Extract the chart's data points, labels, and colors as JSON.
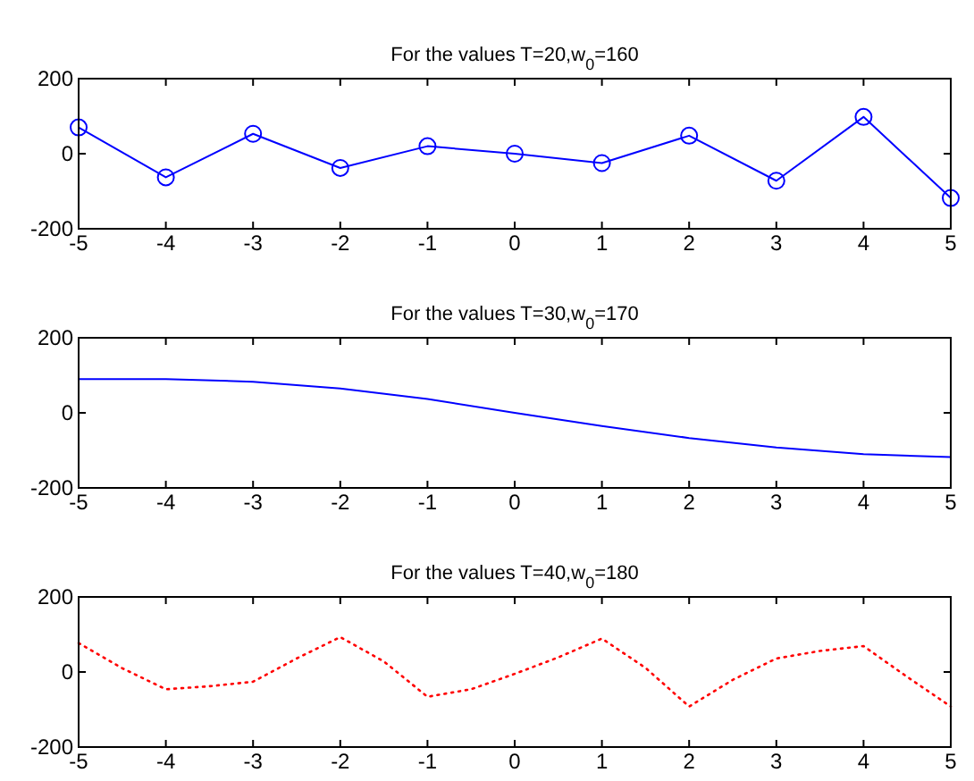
{
  "chart_data": [
    {
      "type": "line",
      "title": "For the values T=20,w$_{0}$=160",
      "x": [
        -5,
        -4,
        -3,
        -2,
        -1,
        0,
        1,
        2,
        3,
        4,
        5
      ],
      "marker": "circle",
      "line_style": "solid",
      "xlim": [
        -5,
        5
      ],
      "xticks": [
        -5,
        -4,
        -3,
        -2,
        -1,
        0,
        1,
        2,
        3,
        4,
        5
      ],
      "ylim": [
        -200,
        200
      ],
      "yticks": [
        -200,
        0,
        200
      ],
      "series": [
        {
          "color": "#0000ff",
          "values": [
            70,
            -63,
            53,
            -38,
            20,
            0,
            -25,
            48,
            -72,
            98,
            -118
          ]
        }
      ]
    },
    {
      "type": "line",
      "title": "For the values T=30,w$_{0}$=170",
      "x": [
        -5,
        -4,
        -3,
        -2,
        -1,
        0,
        1,
        2,
        3,
        4,
        5
      ],
      "marker": "none",
      "line_style": "solid",
      "xlim": [
        -5,
        5
      ],
      "xticks": [
        -5,
        -4,
        -3,
        -2,
        -1,
        0,
        1,
        2,
        3,
        4,
        5
      ],
      "ylim": [
        -200,
        200
      ],
      "yticks": [
        -200,
        0,
        200
      ],
      "series": [
        {
          "color": "#0000ff",
          "values": [
            90,
            90,
            83,
            65,
            37,
            0,
            -35,
            -67,
            -92,
            -110,
            -118
          ]
        }
      ]
    },
    {
      "type": "line",
      "title": "For the values T=40,w$_{0}$=180",
      "x": [
        -5,
        -4.5,
        -4,
        -3.5,
        -3,
        -2.5,
        -2,
        -1.5,
        -1,
        -0.5,
        0,
        0.5,
        1,
        1.5,
        2,
        2.5,
        3,
        3.5,
        4,
        4.5,
        5
      ],
      "marker": "none",
      "line_style": "dotted",
      "xlim": [
        -5,
        5
      ],
      "xticks": [
        -5,
        -4,
        -3,
        -2,
        -1,
        0,
        1,
        2,
        3,
        4,
        5
      ],
      "ylim": [
        -200,
        200
      ],
      "yticks": [
        -200,
        0,
        200
      ],
      "series": [
        {
          "color": "#ff0000",
          "values": [
            77,
            10,
            -46,
            -38,
            -26,
            36,
            93,
            28,
            -66,
            -46,
            -5,
            39,
            89,
            11,
            -92,
            -21,
            36,
            56,
            69,
            -13,
            -92
          ]
        }
      ]
    }
  ]
}
